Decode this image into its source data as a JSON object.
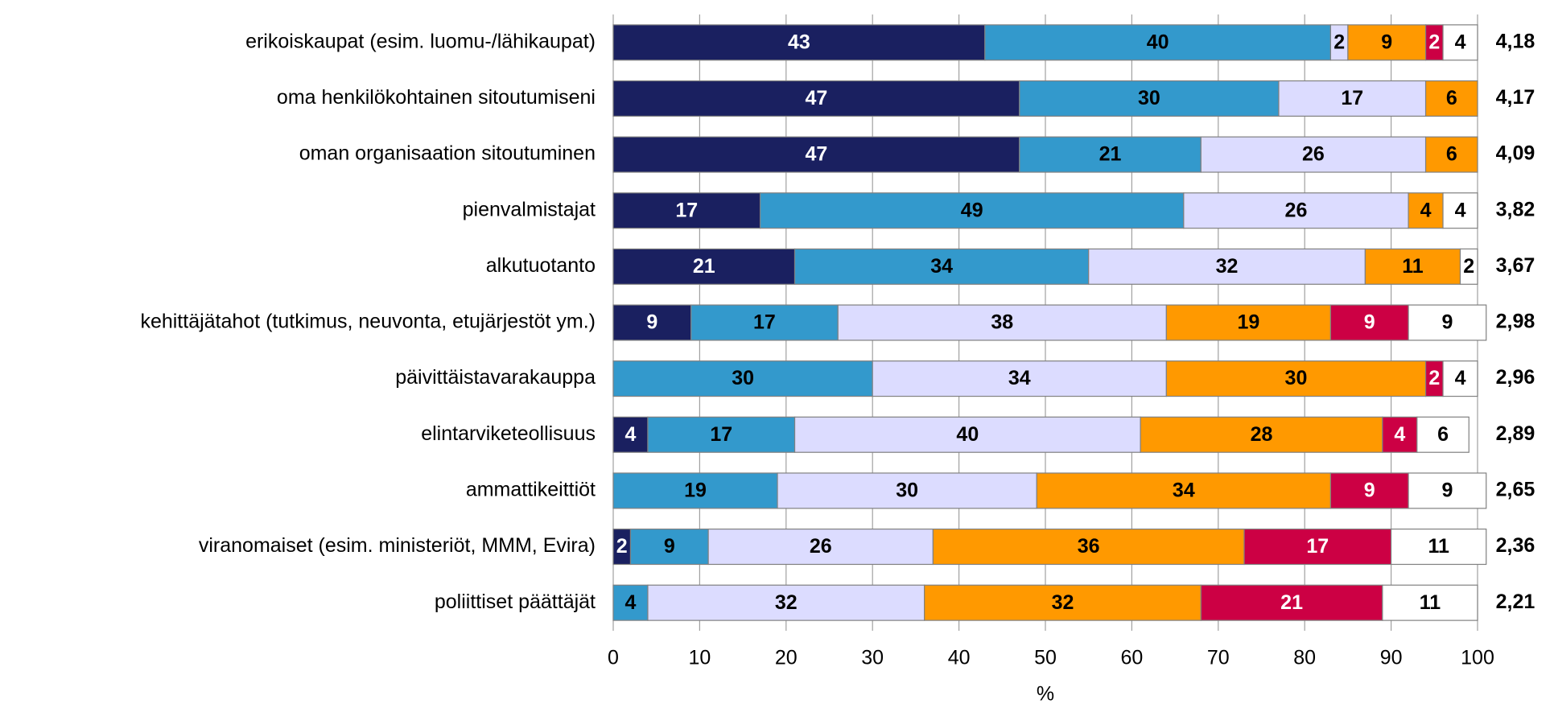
{
  "chart_data": {
    "type": "stacked-bar-horizontal",
    "categories": [
      "erikoiskaupat (esim. luomu-/lähikaupat)",
      "oma henkilökohtainen sitoutumiseni",
      "oman organisaation sitoutuminen",
      "pienvalmistajat",
      "alkutuotanto",
      "kehittäjätahot (tutkimus, neuvonta, etujärjestöt ym.)",
      "päivittäistavarakauppa",
      "elintarviketeollisuus",
      "ammattikeittiöt",
      "viranomaiset (esim. ministeriöt, MMM, Evira)",
      "poliittiset päättäjät"
    ],
    "series": [
      {
        "color": "#1a2060",
        "label_color": "#ffffff",
        "values": [
          43,
          47,
          47,
          17,
          21,
          9,
          null,
          4,
          null,
          2,
          null
        ]
      },
      {
        "color": "#3399cc",
        "label_color": "#000000",
        "values": [
          40,
          30,
          21,
          49,
          34,
          17,
          30,
          17,
          19,
          9,
          4
        ]
      },
      {
        "color": "#dcdcff",
        "label_color": "#000000",
        "values": [
          2,
          17,
          26,
          26,
          32,
          38,
          34,
          40,
          30,
          26,
          32
        ]
      },
      {
        "color": "#ff9900",
        "label_color": "#000000",
        "values": [
          9,
          6,
          6,
          4,
          11,
          19,
          30,
          28,
          34,
          36,
          32
        ]
      },
      {
        "color": "#cc0044",
        "label_color": "#ffffff",
        "values": [
          2,
          null,
          null,
          null,
          null,
          9,
          2,
          4,
          9,
          17,
          21
        ]
      },
      {
        "color": "#ffffff",
        "label_color": "#000000",
        "values": [
          4,
          null,
          null,
          4,
          2,
          9,
          4,
          6,
          9,
          11,
          11
        ]
      }
    ],
    "annotations": [
      "4,18",
      "4,17",
      "4,09",
      "3,82",
      "3,67",
      "2,98",
      "2,96",
      "2,89",
      "2,65",
      "2,36",
      "2,21"
    ],
    "x_label": "%",
    "xlim": [
      0,
      100
    ],
    "xticks": [
      0,
      10,
      20,
      30,
      40,
      50,
      60,
      70,
      80,
      90,
      100
    ],
    "grid": true
  }
}
